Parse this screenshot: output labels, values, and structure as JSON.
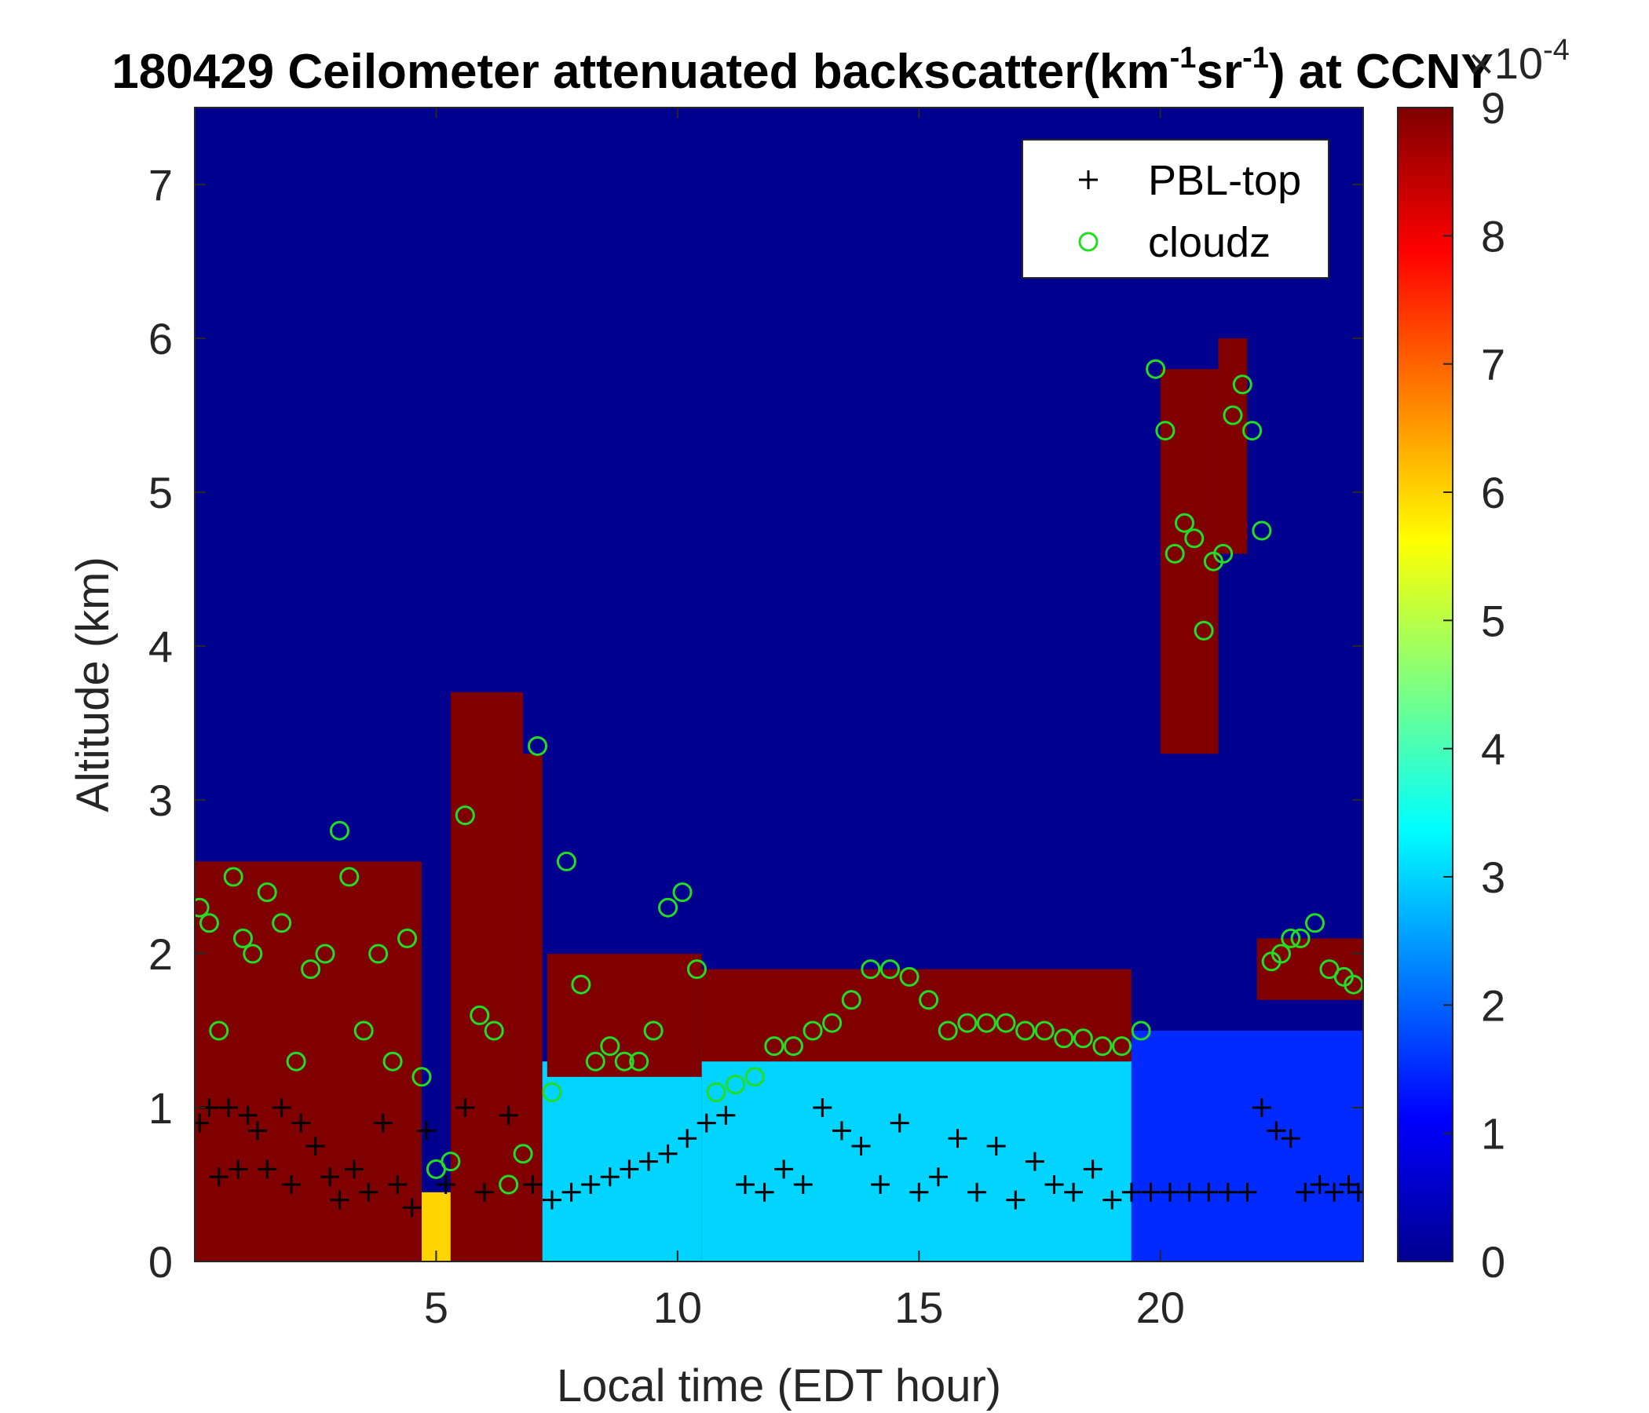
{
  "chart_data": {
    "type": "heatmap",
    "title_main": "180429 Ceilometer attenuated backscatter(km",
    "title_sup1": "-1",
    "title_mid": "sr",
    "title_sup2": "-1",
    "title_end": ") at CCNY",
    "xlabel": "Local time (EDT hour)",
    "ylabel": "Altitude (km)",
    "xlim": [
      0,
      24.2
    ],
    "ylim": [
      0,
      7.5
    ],
    "xticks": [
      "5",
      "10",
      "15",
      "20"
    ],
    "xtick_values": [
      5,
      10,
      15,
      20
    ],
    "yticks": [
      "0",
      "1",
      "2",
      "3",
      "4",
      "5",
      "6",
      "7"
    ],
    "ytick_values": [
      0,
      1,
      2,
      3,
      4,
      5,
      6,
      7
    ],
    "colorbar": {
      "colormap": "jet",
      "range": [
        0,
        9
      ],
      "ticks": [
        "0",
        "1",
        "2",
        "3",
        "4",
        "5",
        "6",
        "7",
        "8",
        "9"
      ],
      "tick_values": [
        0,
        1,
        2,
        3,
        4,
        5,
        6,
        7,
        8,
        9
      ],
      "multiplier_base": "×10",
      "multiplier_exp": "-4"
    },
    "legend": {
      "location": "top-right",
      "entries": [
        {
          "label": "PBL-top",
          "marker": "+",
          "color": "#000000"
        },
        {
          "label": "cloudz",
          "marker": "o",
          "color": "#22dd22"
        }
      ]
    },
    "heatmap_regions": [
      {
        "x": [
          0,
          4.7
        ],
        "y": [
          0,
          2.6
        ],
        "level": 9
      },
      {
        "x": [
          4.7,
          5.3
        ],
        "y": [
          0,
          0.45
        ],
        "level": 6
      },
      {
        "x": [
          5.3,
          6.8
        ],
        "y": [
          0,
          3.7
        ],
        "level": 9
      },
      {
        "x": [
          6.8,
          7.2
        ],
        "y": [
          0,
          3.3
        ],
        "level": 9
      },
      {
        "x": [
          7.2,
          10.5
        ],
        "y": [
          0,
          1.3
        ],
        "level": 3
      },
      {
        "x": [
          10.5,
          19.4
        ],
        "y": [
          0,
          1.4
        ],
        "level": 3
      },
      {
        "x": [
          19.4,
          24.2
        ],
        "y": [
          0,
          1.5
        ],
        "level": 1.5
      },
      {
        "x": [
          7.3,
          10.5
        ],
        "y": [
          1.2,
          2.0
        ],
        "level": 9
      },
      {
        "x": [
          10.5,
          19.4
        ],
        "y": [
          1.3,
          1.9
        ],
        "level": 9
      },
      {
        "x": [
          22.0,
          24.2
        ],
        "y": [
          1.7,
          2.1
        ],
        "level": 9
      },
      {
        "x": [
          20.0,
          21.2
        ],
        "y": [
          3.3,
          5.8
        ],
        "level": 9
      },
      {
        "x": [
          21.2,
          21.8
        ],
        "y": [
          4.6,
          6.0
        ],
        "level": 9
      }
    ],
    "series": [
      {
        "name": "PBL-top",
        "x": [
          0.1,
          0.3,
          0.5,
          0.7,
          0.9,
          1.1,
          1.3,
          1.5,
          1.8,
          2.0,
          2.2,
          2.5,
          2.8,
          3.0,
          3.3,
          3.6,
          3.9,
          4.2,
          4.5,
          4.8,
          5.2,
          5.6,
          6.0,
          6.5,
          7.0,
          7.4,
          7.8,
          8.2,
          8.6,
          9.0,
          9.4,
          9.8,
          10.2,
          10.6,
          11.0,
          11.4,
          11.8,
          12.2,
          12.6,
          13.0,
          13.4,
          13.8,
          14.2,
          14.6,
          15.0,
          15.4,
          15.8,
          16.2,
          16.6,
          17.0,
          17.4,
          17.8,
          18.2,
          18.6,
          19.0,
          19.4,
          19.8,
          20.2,
          20.6,
          21.0,
          21.4,
          21.8,
          22.1,
          22.4,
          22.7,
          23.0,
          23.3,
          23.6,
          23.9,
          24.1
        ],
        "y": [
          0.9,
          1.0,
          0.55,
          1.0,
          0.6,
          0.95,
          0.85,
          0.6,
          1.0,
          0.5,
          0.9,
          0.75,
          0.55,
          0.4,
          0.6,
          0.45,
          0.9,
          0.5,
          0.35,
          0.85,
          0.5,
          1.0,
          0.45,
          0.95,
          0.5,
          0.4,
          0.45,
          0.5,
          0.55,
          0.6,
          0.65,
          0.7,
          0.8,
          0.9,
          0.95,
          0.5,
          0.45,
          0.6,
          0.5,
          1.0,
          0.85,
          0.75,
          0.5,
          0.9,
          0.45,
          0.55,
          0.8,
          0.45,
          0.75,
          0.4,
          0.65,
          0.5,
          0.45,
          0.6,
          0.4,
          0.45,
          0.45,
          0.45,
          0.45,
          0.45,
          0.45,
          0.45,
          1.0,
          0.85,
          0.8,
          0.45,
          0.5,
          0.45,
          0.5,
          0.45
        ]
      },
      {
        "name": "cloudz",
        "x": [
          0.1,
          0.3,
          0.5,
          0.8,
          1.0,
          1.2,
          1.5,
          1.8,
          2.1,
          2.4,
          2.7,
          3.0,
          3.2,
          3.5,
          3.8,
          4.1,
          4.4,
          4.7,
          5.0,
          5.3,
          5.6,
          5.9,
          6.2,
          6.5,
          6.8,
          7.1,
          7.4,
          7.7,
          8.0,
          8.3,
          8.6,
          8.9,
          9.2,
          9.5,
          9.8,
          10.1,
          10.4,
          10.8,
          11.2,
          11.6,
          12.0,
          12.4,
          12.8,
          13.2,
          13.6,
          14.0,
          14.4,
          14.8,
          15.2,
          15.6,
          16.0,
          16.4,
          16.8,
          17.2,
          17.6,
          18.0,
          18.4,
          18.8,
          19.2,
          19.6,
          19.9,
          20.1,
          20.3,
          20.5,
          20.7,
          20.9,
          21.1,
          21.3,
          21.5,
          21.7,
          21.9,
          22.1,
          22.3,
          22.5,
          22.7,
          22.9,
          23.2,
          23.5,
          23.8,
          24.0
        ],
        "y": [
          2.3,
          2.2,
          1.5,
          2.5,
          2.1,
          2.0,
          2.4,
          2.2,
          1.3,
          1.9,
          2.0,
          2.8,
          2.5,
          1.5,
          2.0,
          1.3,
          2.1,
          1.2,
          0.6,
          0.65,
          2.9,
          1.6,
          1.5,
          0.5,
          0.7,
          3.35,
          1.1,
          2.6,
          1.8,
          1.3,
          1.4,
          1.3,
          1.3,
          1.5,
          2.3,
          2.4,
          1.9,
          1.1,
          1.15,
          1.2,
          1.4,
          1.4,
          1.5,
          1.55,
          1.7,
          1.9,
          1.9,
          1.85,
          1.7,
          1.5,
          1.55,
          1.55,
          1.55,
          1.5,
          1.5,
          1.45,
          1.45,
          1.4,
          1.4,
          1.5,
          5.8,
          5.4,
          4.6,
          4.8,
          4.7,
          4.1,
          4.55,
          4.6,
          5.5,
          5.7,
          5.4,
          4.75,
          1.95,
          2.0,
          2.1,
          2.1,
          2.2,
          1.9,
          1.85,
          1.8
        ]
      }
    ]
  }
}
